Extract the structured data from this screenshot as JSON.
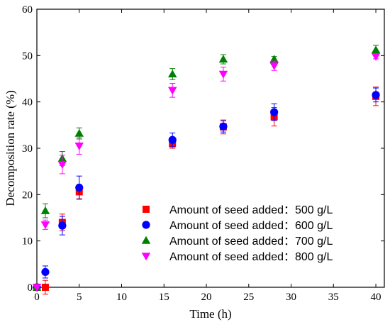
{
  "chart_data": {
    "type": "scatter",
    "xlabel": "Time (h)",
    "ylabel": "Decomposition rate (%)",
    "xlim": [
      0,
      41
    ],
    "ylim": [
      0,
      60
    ],
    "xticks": [
      0,
      5,
      10,
      15,
      20,
      25,
      30,
      35,
      40
    ],
    "yticks": [
      0,
      10,
      20,
      30,
      40,
      50,
      60
    ],
    "legend_position": "bottom-right",
    "series": [
      {
        "name": "Amount of seed added：500 g/L",
        "marker": "square",
        "color": "#ff0000",
        "x": [
          0,
          1,
          3,
          5,
          16,
          22,
          28,
          40
        ],
        "y": [
          0,
          0,
          14.0,
          20.6,
          31.0,
          34.6,
          36.8,
          41.2
        ],
        "err": [
          0,
          1.5,
          1.8,
          1.5,
          1.0,
          1.5,
          2.0,
          2.0
        ]
      },
      {
        "name": "Amount of seed added：600 g/L",
        "marker": "circle",
        "color": "#0000ff",
        "x": [
          0,
          1,
          3,
          5,
          16,
          22,
          28,
          40
        ],
        "y": [
          0,
          3.3,
          13.3,
          21.5,
          31.8,
          34.7,
          37.8,
          41.5
        ],
        "err": [
          0,
          1.3,
          2.0,
          2.5,
          1.5,
          1.2,
          1.8,
          1.5
        ]
      },
      {
        "name": "Amount of seed added：700 g/L",
        "marker": "triangle-up",
        "color": "#008000",
        "x": [
          0,
          1,
          3,
          5,
          16,
          22,
          28,
          40
        ],
        "y": [
          0,
          16.5,
          27.8,
          33.2,
          46.0,
          49.2,
          49.2,
          51.2
        ],
        "err": [
          0,
          1.5,
          1.5,
          1.2,
          1.2,
          1.0,
          0.6,
          1.0
        ]
      },
      {
        "name": "Amount of seed added：800 g/L",
        "marker": "triangle-down",
        "color": "#ff00ff",
        "x": [
          0,
          1,
          3,
          5,
          16,
          22,
          28,
          40
        ],
        "y": [
          0,
          13.5,
          26.5,
          30.5,
          42.5,
          46.0,
          47.8,
          49.8
        ],
        "err": [
          0,
          1.0,
          2.0,
          1.8,
          1.5,
          1.5,
          1.0,
          0.5
        ]
      }
    ]
  }
}
